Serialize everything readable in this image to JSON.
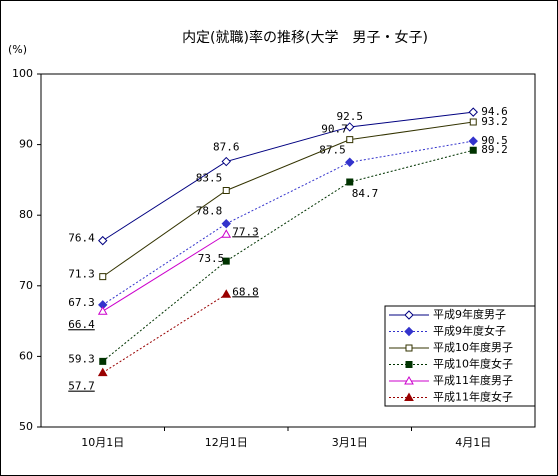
{
  "chart_data": {
    "type": "line",
    "title": "内定(就職)率の推移(大学　男子・女子)",
    "y_label": "(%)",
    "categories": [
      "10月1日",
      "12月1日",
      "3月1日",
      "4月1日"
    ],
    "ylim": [
      50,
      100
    ],
    "yticks": [
      50,
      60,
      70,
      80,
      90,
      100
    ],
    "legend": "bottom-right",
    "series": [
      {
        "name": "平成9年度男子",
        "color": "#000080",
        "values": [
          76.4,
          87.6,
          92.5,
          94.6
        ]
      },
      {
        "name": "平成9年度女子",
        "color": "#3333cc",
        "values": [
          67.3,
          78.8,
          87.5,
          90.5
        ]
      },
      {
        "name": "平成10年度男子",
        "color": "#333300",
        "values": [
          71.3,
          83.5,
          90.7,
          93.2
        ]
      },
      {
        "name": "平成10年度女子",
        "color": "#003300",
        "values": [
          59.3,
          73.5,
          84.7,
          89.2
        ]
      },
      {
        "name": "平成11年度男子",
        "color": "#cc00cc",
        "values": [
          66.4,
          77.3,
          null,
          null
        ]
      },
      {
        "name": "平成11年度女子",
        "color": "#990000",
        "values": [
          57.7,
          68.8,
          null,
          null
        ]
      }
    ]
  }
}
